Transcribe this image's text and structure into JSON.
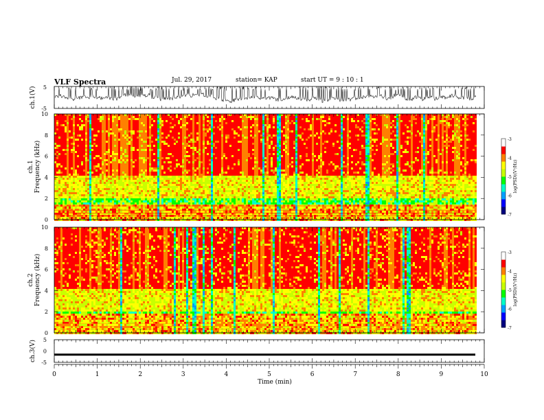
{
  "header": {
    "title": "VLF Spectra",
    "date": "Jul. 29, 2017",
    "station": "station= KAP",
    "start": "start  UT =   9 : 10 : 1"
  },
  "chart_data": [
    {
      "type": "line",
      "ylabel": "ch.1(V)",
      "ylim": [
        -5,
        5
      ],
      "yticks": [
        "5",
        "-5"
      ],
      "description_level": "noisy waveform centred near 0 V"
    },
    {
      "type": "heatmap",
      "ylabel_line1": "ch.1",
      "ylabel_line2": "Frequency  (kHz)",
      "ylim": [
        0,
        10
      ],
      "yticks": [
        "0",
        "2",
        "4",
        "6",
        "8",
        "10"
      ],
      "colorbar": {
        "label": "log(PSD)(V²/Hz)",
        "range": [
          -7,
          -3
        ],
        "ticks": [
          "-3",
          "-4",
          "-5",
          "-6",
          "-7"
        ]
      }
    },
    {
      "type": "heatmap",
      "ylabel_line1": "ch.2",
      "ylabel_line2": "Frequency  (kHz)",
      "ylim": [
        0,
        10
      ],
      "yticks": [
        "0",
        "2",
        "4",
        "6",
        "8",
        "10"
      ],
      "colorbar": {
        "label": "log(PSD)(V²/Hz)",
        "range": [
          -7,
          -3
        ],
        "ticks": [
          "-3",
          "-4",
          "-5",
          "-6",
          "-7"
        ]
      }
    },
    {
      "type": "line",
      "ylabel": "ch.3(V)",
      "ylim": [
        -5,
        5
      ],
      "yticks": [
        "5",
        "0",
        "-5"
      ],
      "constant_level": -1.6
    }
  ],
  "xaxis": {
    "label": "Time  (min)",
    "xlim": [
      0,
      10
    ],
    "ticks": [
      "0",
      "1",
      "2",
      "3",
      "4",
      "5",
      "6",
      "7",
      "8",
      "9",
      "10"
    ]
  },
  "colors": {
    "line": "#000000",
    "colormap": [
      "#00007f",
      "#0000ff",
      "#00a0ff",
      "#00ffc8",
      "#00ff00",
      "#c8ff00",
      "#ffff00",
      "#ff8000",
      "#ff0000",
      "#ffffff"
    ]
  }
}
